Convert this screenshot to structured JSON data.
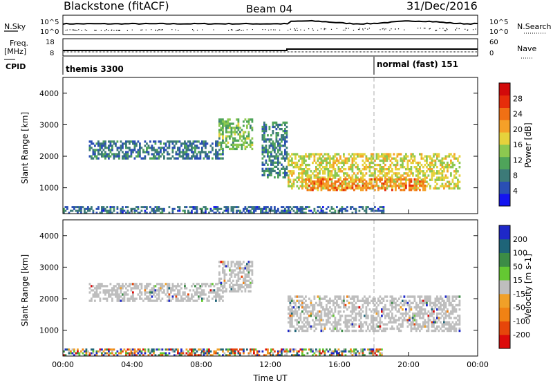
{
  "header": {
    "title": "Blackstone (fitACF)",
    "beam": "Beam 04",
    "date": "31/Dec/2016"
  },
  "top_panels": {
    "nsky_label": "N.Sky",
    "nsearch_label": "N.Search",
    "freq_label_1": "Freq.",
    "freq_label_2": "[MHz]",
    "nave_label": "Nave",
    "cpid_label": "CPID",
    "noise_ticks_left": [
      "10^5",
      "10^0"
    ],
    "noise_ticks_right": [
      "10^5",
      "10^0"
    ],
    "freq_ticks_left": [
      "18",
      "8"
    ],
    "freq_ticks_right": [
      "60",
      "0"
    ],
    "cpid_segments": [
      {
        "name": "themis 3300",
        "start_hour": 0,
        "end_hour": 18
      },
      {
        "name": "normal (fast) 151",
        "start_hour": 18,
        "end_hour": 24
      }
    ]
  },
  "chart_data": [
    {
      "type": "heatmap",
      "name": "power",
      "ylabel": "Slant Range [km]",
      "xlim": [
        0,
        24
      ],
      "ylim": [
        180,
        4500
      ],
      "y_ticks": [
        "1000",
        "2000",
        "3000",
        "4000"
      ],
      "colorbar": {
        "label": "Power [dB]",
        "ticks": [
          "4",
          "8",
          "12",
          "16",
          "20",
          "24",
          "28"
        ],
        "colors": [
          "#1414f0",
          "#2a4fb4",
          "#3c7a78",
          "#4fa45a",
          "#8cc850",
          "#e6d23c",
          "#f5a028",
          "#f07014",
          "#e62d0a",
          "#d20a0a"
        ]
      },
      "regions": [
        {
          "t0": 0.0,
          "t1": 18.6,
          "r0": 180,
          "r1": 420,
          "level": 5
        },
        {
          "t0": 1.5,
          "t1": 9.3,
          "r0": 1900,
          "r1": 2500,
          "level": 6
        },
        {
          "t0": 9.0,
          "t1": 11.0,
          "r0": 2200,
          "r1": 3200,
          "level": 12
        },
        {
          "t0": 11.5,
          "t1": 13.0,
          "r0": 1300,
          "r1": 3100,
          "level": 7
        },
        {
          "t0": 13.0,
          "t1": 23.0,
          "r0": 950,
          "r1": 2100,
          "level": 16
        },
        {
          "t0": 14.0,
          "t1": 21.0,
          "r0": 900,
          "r1": 1300,
          "level": 22
        }
      ]
    },
    {
      "type": "heatmap",
      "name": "velocity",
      "ylabel": "Slant Range [km]",
      "xlabel": "Time UT",
      "xlim": [
        0,
        24
      ],
      "ylim": [
        180,
        4500
      ],
      "y_ticks": [
        "1000",
        "2000",
        "3000",
        "4000"
      ],
      "x_ticks": [
        "00:00",
        "04:00",
        "08:00",
        "12:00",
        "16:00",
        "20:00",
        "00:00"
      ],
      "colorbar": {
        "label": "Velocity [m s-1]",
        "ticks": [
          "200",
          "100",
          "50",
          "15",
          "-15",
          "-50",
          "-100",
          "-200"
        ],
        "colors": [
          "#1e28c8",
          "#1e6478",
          "#3c8c46",
          "#64c832",
          "#bebebe",
          "#f0a028",
          "#f08214",
          "#e6460a",
          "#dc0a0a"
        ]
      },
      "regions": [
        {
          "t0": 0.0,
          "t1": 18.6,
          "r0": 180,
          "r1": 420,
          "velocity": 50
        },
        {
          "t0": 1.5,
          "t1": 9.3,
          "r0": 1900,
          "r1": 2500,
          "velocity": 0
        },
        {
          "t0": 9.0,
          "t1": 11.0,
          "r0": 2200,
          "r1": 3200,
          "velocity": 0
        },
        {
          "t0": 13.0,
          "t1": 23.0,
          "r0": 950,
          "r1": 2100,
          "velocity": 0
        }
      ]
    }
  ]
}
